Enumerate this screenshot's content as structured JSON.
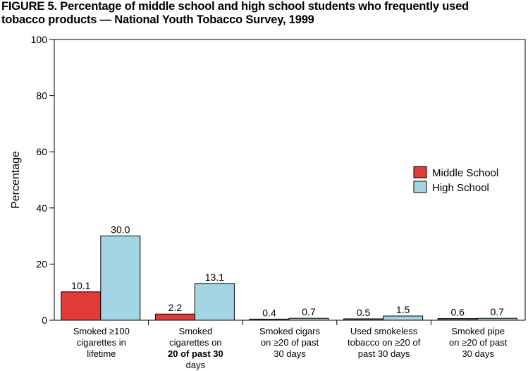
{
  "title_line1": "FIGURE 5. Percentage of middle school and high school students who frequently used",
  "title_line2": "tobacco products — National Youth Tobacco Survey, 1999",
  "chart_data": {
    "type": "bar",
    "title": "FIGURE 5. Percentage of middle school and high school students who frequently used tobacco products — National Youth Tobacco Survey, 1999",
    "xlabel": "",
    "ylabel": "Percentage",
    "ylim": [
      0,
      100
    ],
    "yticks": [
      "0",
      "20",
      "40",
      "60",
      "80",
      "100"
    ],
    "grid": false,
    "legend_position": "right",
    "categories": [
      [
        "Smoked ≥100",
        "cigarettes in",
        "lifetime"
      ],
      [
        "Smoked",
        "cigarettes on",
        "20 of past 30",
        "days"
      ],
      [
        "Smoked cigars",
        "on ≥20 of past",
        "30 days"
      ],
      [
        "Used smokeless",
        "tobacco on ≥20 of",
        "past 30 days"
      ],
      [
        "Smoked pipe",
        "on  ≥20 of past",
        "30 days"
      ]
    ],
    "series": [
      {
        "name": "Middle School",
        "color": "#e03a3a",
        "values": [
          10.1,
          2.2,
          0.4,
          0.5,
          0.6
        ],
        "labels": [
          "10.1",
          "2.2",
          "0.4",
          "0.5",
          "0.6"
        ]
      },
      {
        "name": "High School",
        "color": "#a3d5e3",
        "values": [
          30.0,
          13.1,
          0.7,
          1.5,
          0.7
        ],
        "labels": [
          "30.0",
          "13.1",
          "0.7",
          "1.5",
          "0.7"
        ]
      }
    ]
  }
}
